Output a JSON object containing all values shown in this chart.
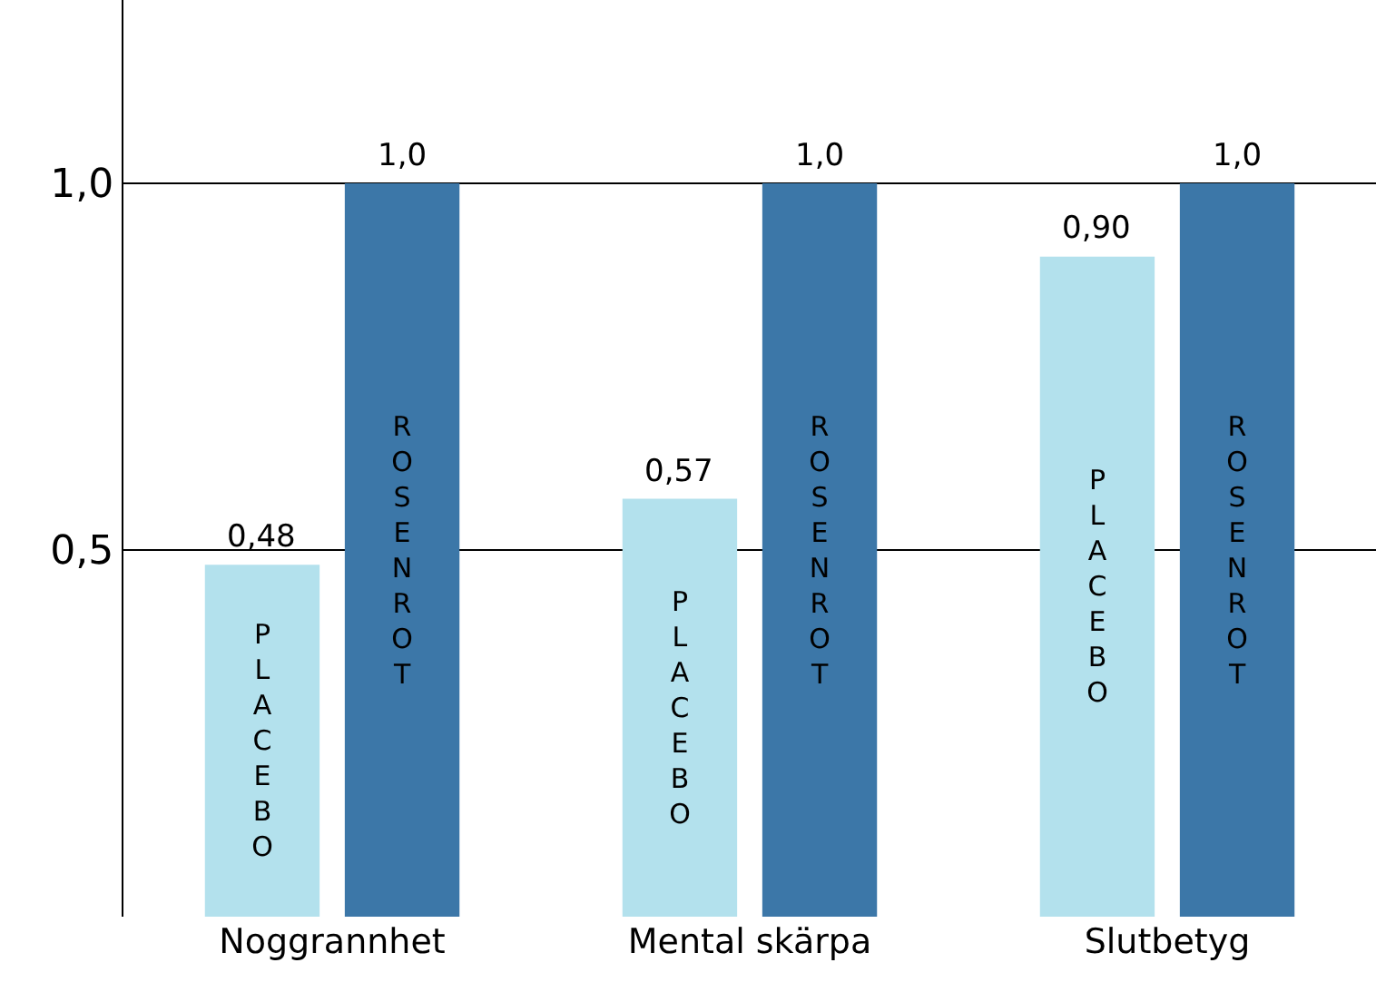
{
  "chart_data": {
    "type": "bar",
    "categories": [
      "Noggrannhet",
      "Mental skärpa",
      "Slutbetyg"
    ],
    "series": [
      {
        "name": "PLACEBO",
        "color": "#b3e1ed",
        "values": [
          0.48,
          0.57,
          0.9
        ],
        "value_labels": [
          "0,48",
          "0,57",
          "0,90"
        ]
      },
      {
        "name": "ROSENROT",
        "color": "#3c77a8",
        "values": [
          1.0,
          1.0,
          1.0
        ],
        "value_labels": [
          "1,0",
          "1,0",
          "1,0"
        ]
      }
    ],
    "ylim": [
      0,
      1.25
    ],
    "yticks": [
      {
        "value": 0.5,
        "label": "0,5"
      },
      {
        "value": 1.0,
        "label": "1,0"
      }
    ],
    "grid": "y"
  }
}
